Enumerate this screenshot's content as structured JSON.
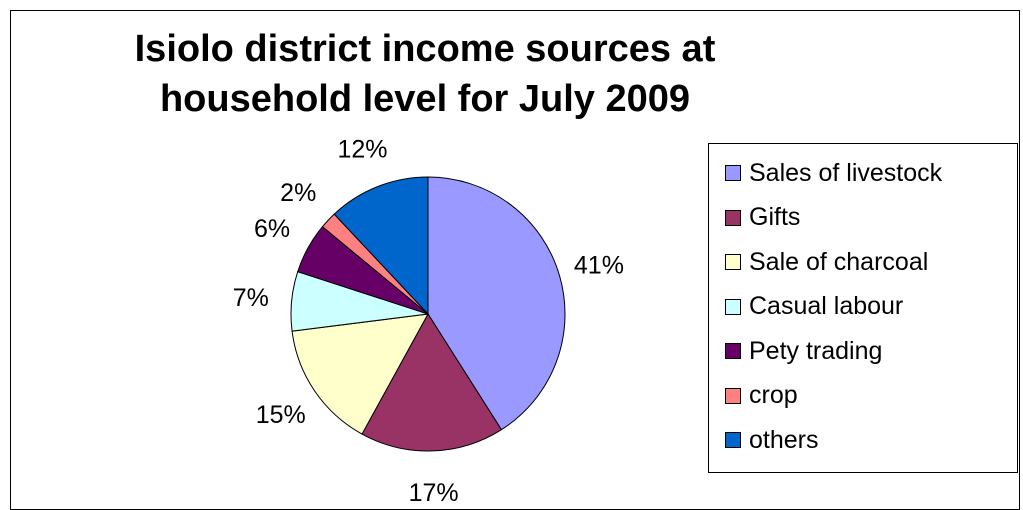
{
  "chart_data": {
    "type": "pie",
    "title": "Isiolo district income sources at household level for July  2009",
    "title_lines": [
      "Isiolo district income sources at",
      "household level for July  2009"
    ],
    "slices": [
      {
        "label": "Sales of livestock",
        "value": 41,
        "display": "41%",
        "color": "#9999FF"
      },
      {
        "label": "Gifts",
        "value": 17,
        "display": "17%",
        "color": "#993366"
      },
      {
        "label": "Sale of charcoal",
        "value": 15,
        "display": "15%",
        "color": "#FFFFCC"
      },
      {
        "label": "Casual labour",
        "value": 7,
        "display": "7%",
        "color": "#CCFFFF"
      },
      {
        "label": "Pety trading",
        "value": 6,
        "display": "6%",
        "color": "#660066"
      },
      {
        "label": "crop",
        "value": 2,
        "display": "2%",
        "color": "#FF8080"
      },
      {
        "label": "others",
        "value": 12,
        "display": "12%",
        "color": "#0066CC"
      }
    ],
    "legend_position": "right"
  }
}
